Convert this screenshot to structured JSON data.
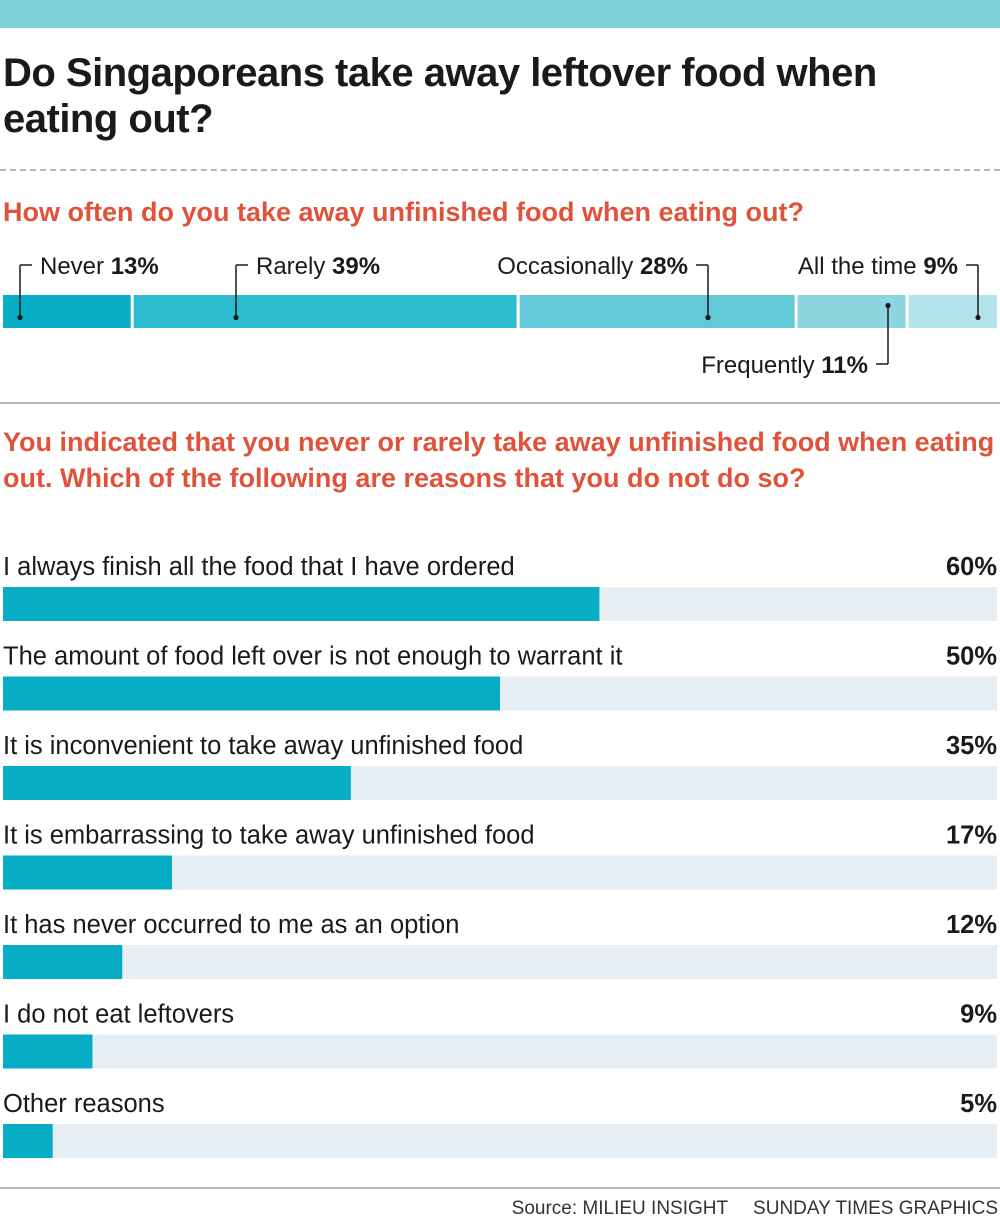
{
  "header": {
    "title": "Do Singaporeans take away leftover food when eating out?"
  },
  "chart_data": [
    {
      "type": "bar",
      "orientation": "horizontal-stacked",
      "title": "How often do you take away unfinished food when eating out?",
      "unit": "%",
      "segments": [
        {
          "label": "Never",
          "value": 13,
          "display": "13%",
          "color": "#07adc4"
        },
        {
          "label": "Rarely",
          "value": 39,
          "display": "39%",
          "color": "#2cbbcf"
        },
        {
          "label": "Occasionally",
          "value": 28,
          "display": "28%",
          "color": "#63c9d6"
        },
        {
          "label": "Frequently",
          "value": 11,
          "display": "11%",
          "color": "#8dd5df"
        },
        {
          "label": "All the time",
          "value": 9,
          "display": "9%",
          "color": "#b3e3ea"
        }
      ]
    },
    {
      "type": "bar",
      "orientation": "horizontal",
      "title": "You indicated that you never or rarely take away unfinished food when eating out. Which of the following are reasons that you do not do so?",
      "unit": "%",
      "xlim": [
        0,
        100
      ],
      "bar_color": "#07adc4",
      "track_color": "#e6eef4",
      "categories": [
        "I always finish all the food that I have ordered",
        "The amount of food left over is not enough to warrant it",
        "It is inconvenient to take away unfinished food",
        "It is embarrassing to take away unfinished food",
        "It has never occurred to me as an option",
        "I do not eat leftovers",
        "Other reasons"
      ],
      "values": [
        60,
        50,
        35,
        17,
        12,
        9,
        5
      ],
      "labels": [
        "60%",
        "50%",
        "35%",
        "17%",
        "12%",
        "9%",
        "5%"
      ]
    }
  ],
  "footer": {
    "source": "Source: MILIEU INSIGHT",
    "credit": "SUNDAY TIMES GRAPHICS"
  }
}
